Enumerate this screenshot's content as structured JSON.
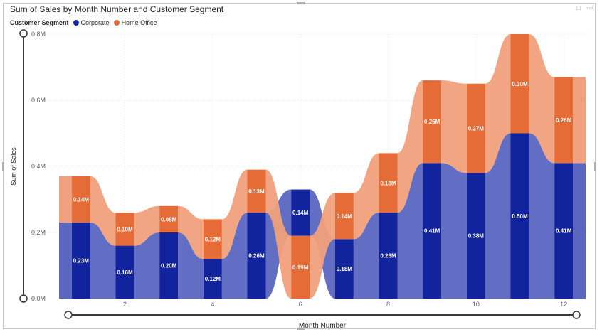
{
  "visual": {
    "title": "Sum of Sales by Month Number and Customer Segment",
    "legend_title": "Customer Segment",
    "legend": [
      {
        "name": "Corporate",
        "color": "#12239e"
      },
      {
        "name": "Home Office",
        "color": "#e66c37"
      }
    ],
    "icons": {
      "focus": "focus-mode-icon",
      "more": "more-options-icon"
    }
  },
  "chart_data": {
    "type": "ribbon",
    "title": "Sum of Sales by Month Number and Customer Segment",
    "xlabel": "Month Number",
    "ylabel": "Sum of Sales",
    "ylim": [
      0,
      0.8
    ],
    "y_ticks": [
      "0.0M",
      "0.2M",
      "0.4M",
      "0.6M",
      "0.8M"
    ],
    "y_tick_values": [
      0,
      0.2,
      0.4,
      0.6,
      0.8
    ],
    "x_ticks": [
      "2",
      "4",
      "6",
      "8",
      "10",
      "12"
    ],
    "x_tick_values": [
      2,
      4,
      6,
      8,
      10,
      12
    ],
    "categories": [
      1,
      2,
      3,
      4,
      5,
      6,
      7,
      8,
      9,
      10,
      11,
      12
    ],
    "series": [
      {
        "name": "Corporate",
        "color": "#12239e",
        "ribbon_color": "#5a66c0",
        "values": [
          0.23,
          0.16,
          0.2,
          0.12,
          0.26,
          0.14,
          0.18,
          0.26,
          0.41,
          0.38,
          0.5,
          0.41
        ],
        "labels": [
          "0.23M",
          "0.16M",
          "0.20M",
          "0.12M",
          "0.26M",
          "0.14M",
          "0.18M",
          "0.26M",
          "0.41M",
          "0.38M",
          "0.50M",
          "0.41M"
        ]
      },
      {
        "name": "Home Office",
        "color": "#e66c37",
        "ribbon_color": "#f0a07c",
        "values": [
          0.14,
          0.1,
          0.08,
          0.12,
          0.13,
          0.19,
          0.14,
          0.18,
          0.25,
          0.27,
          0.3,
          0.26
        ],
        "labels": [
          "0.14M",
          "0.10M",
          "0.08M",
          "0.12M",
          "0.13M",
          "0.19M",
          "0.14M",
          "0.18M",
          "0.25M",
          "0.27M",
          "0.30M",
          "0.26M"
        ]
      }
    ],
    "gridlines": true,
    "legend_position": "top-left"
  }
}
